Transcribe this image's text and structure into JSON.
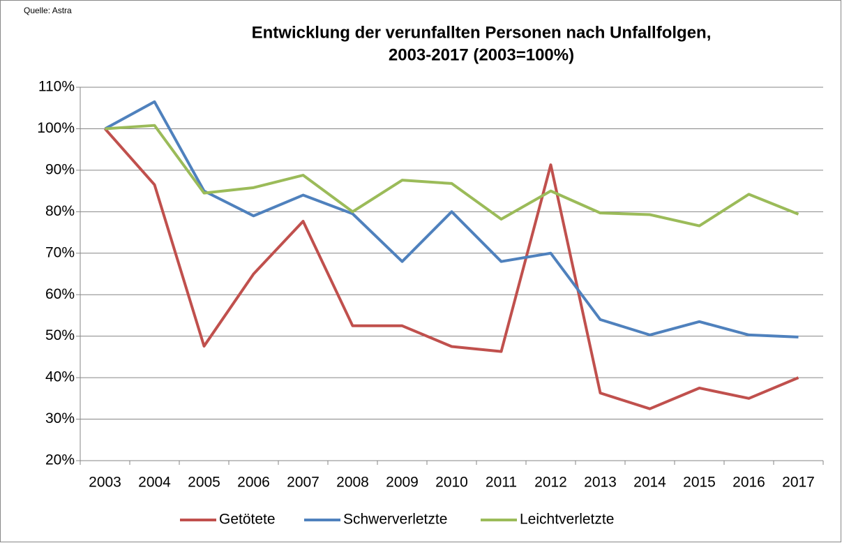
{
  "chart_data": {
    "type": "line",
    "source": "Quelle: Astra",
    "title": [
      "Entwicklung der verunfallten Personen nach Unfallfolgen,",
      "2003-2017 (2003=100%)"
    ],
    "categories": [
      "2003",
      "2004",
      "2005",
      "2006",
      "2007",
      "2008",
      "2009",
      "2010",
      "2011",
      "2012",
      "2013",
      "2014",
      "2015",
      "2016",
      "2017"
    ],
    "series": [
      {
        "name": "Getötete",
        "color": "#c0504d",
        "values": [
          100,
          86.5,
          47.6,
          65,
          77.7,
          52.5,
          52.5,
          47.5,
          46.3,
          91.3,
          36.3,
          32.5,
          37.5,
          35,
          40
        ]
      },
      {
        "name": "Schwerverletzte",
        "color": "#4f81bd",
        "values": [
          100,
          106.5,
          85,
          79,
          84,
          79.5,
          68,
          80,
          68,
          70,
          54,
          50.3,
          53.5,
          50.3,
          49.8
        ]
      },
      {
        "name": "Leichtverletzte",
        "color": "#9bbb59",
        "values": [
          100,
          100.8,
          84.5,
          85.8,
          88.8,
          80,
          87.6,
          86.8,
          78.2,
          85,
          79.7,
          79.3,
          76.6,
          84.2,
          79.4
        ]
      }
    ],
    "ylim": [
      20,
      110
    ],
    "yticks": [
      {
        "value": 20,
        "label": "20%"
      },
      {
        "value": 30,
        "label": "30%"
      },
      {
        "value": 40,
        "label": "40%"
      },
      {
        "value": 50,
        "label": "50%"
      },
      {
        "value": 60,
        "label": "60%"
      },
      {
        "value": 70,
        "label": "70%"
      },
      {
        "value": 80,
        "label": "80%"
      },
      {
        "value": 90,
        "label": "90%"
      },
      {
        "value": 100,
        "label": "100%"
      },
      {
        "value": 110,
        "label": "110%"
      }
    ],
    "grid": true,
    "legend": "bottom"
  }
}
